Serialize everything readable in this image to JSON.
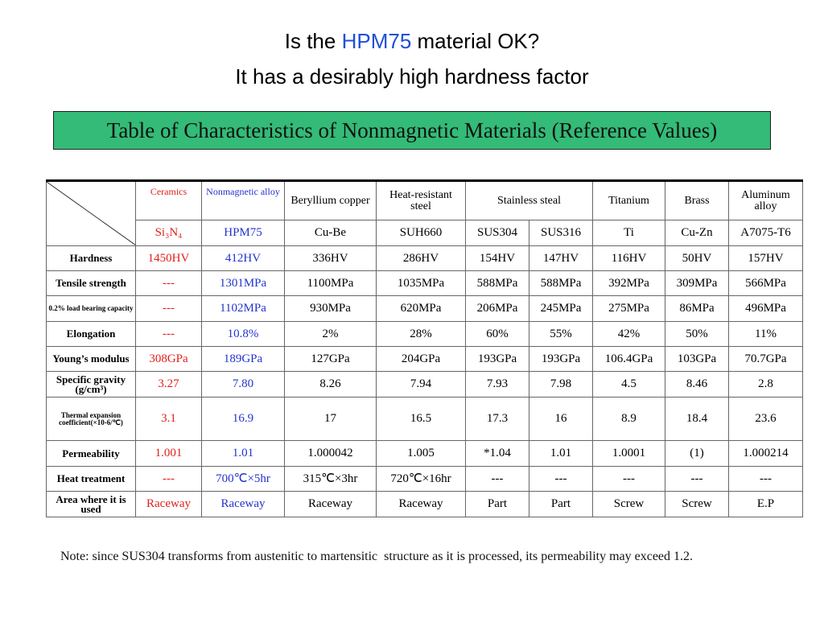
{
  "title": {
    "line1": [
      "Is the ",
      "HPM75",
      " material OK?"
    ],
    "line2": "It has a desirably high hardness factor"
  },
  "banner": "Table of Characteristics of Nonmagnetic Materials (Reference Values)",
  "table": {
    "header": [
      "Ceramics",
      "Nonmagnetic alloy",
      "Beryllium copper",
      "Heat-resistant steel",
      "Stainless steal",
      "Titanium",
      "Brass",
      "Aluminum alloy"
    ],
    "subheader": [
      "Si₃N₄",
      "HPM75",
      "Cu-Be",
      "SUH660",
      "SUS304",
      "SUS316",
      "Ti",
      "Cu-Zn",
      "A7075-T6"
    ],
    "rows": [
      {
        "label": "Hardness",
        "cells": [
          "1450HV",
          "412HV",
          "336HV",
          "286HV",
          "154HV",
          "147HV",
          "116HV",
          "50HV",
          "157HV"
        ]
      },
      {
        "label": "Tensile strength",
        "cells": [
          "---",
          "1301MPa",
          "1100MPa",
          "1035MPa",
          "588MPa",
          "588MPa",
          "392MPa",
          "309MPa",
          "566MPa"
        ]
      },
      {
        "label": "0.2% load bearing capacity",
        "cells": [
          "---",
          "1102MPa",
          "930MPa",
          "620MPa",
          "206MPa",
          "245MPa",
          "275MPa",
          "86MPa",
          "496MPa"
        ]
      },
      {
        "label": "Elongation",
        "cells": [
          "---",
          "10.8%",
          "2%",
          "28%",
          "60%",
          "55%",
          "42%",
          "50%",
          "11%"
        ]
      },
      {
        "label": "Young’s modulus",
        "cells": [
          "308GPa",
          "189GPa",
          "127GPa",
          "204GPa",
          "193GPa",
          "193GPa",
          "106.4GPa",
          "103GPa",
          "70.7GPa"
        ]
      },
      {
        "label": "Specific gravity (g/cm³)",
        "cells": [
          "3.27",
          "7.80",
          "8.26",
          "7.94",
          "7.93",
          "7.98",
          "4.5",
          "8.46",
          "2.8"
        ]
      },
      {
        "label": "Thermal expansion coefficient(×10-6/℃)",
        "cells": [
          "3.1",
          "16.9",
          "17",
          "16.5",
          "17.3",
          "16",
          "8.9",
          "18.4",
          "23.6"
        ]
      },
      {
        "label": "Permeability",
        "cells": [
          "1.001",
          "1.01",
          "1.000042",
          "1.005",
          "*1.04",
          "1.01",
          "1.0001",
          "(1)",
          "1.000214"
        ]
      },
      {
        "label": "Heat treatment",
        "cells": [
          "---",
          "700℃×5hr",
          "315℃×3hr",
          "720℃×16hr",
          "---",
          "---",
          "---",
          "---",
          "---"
        ]
      },
      {
        "label": "Area where it is used",
        "cells": [
          "Raceway",
          "Raceway",
          "Raceway",
          "Raceway",
          "Part",
          "Part",
          "Screw",
          "Screw",
          "E.P"
        ]
      }
    ]
  },
  "note": "Note: since SUS304 transforms from austenitic to martensitic  structure as it is processed, its permeability may exceed 1.2."
}
